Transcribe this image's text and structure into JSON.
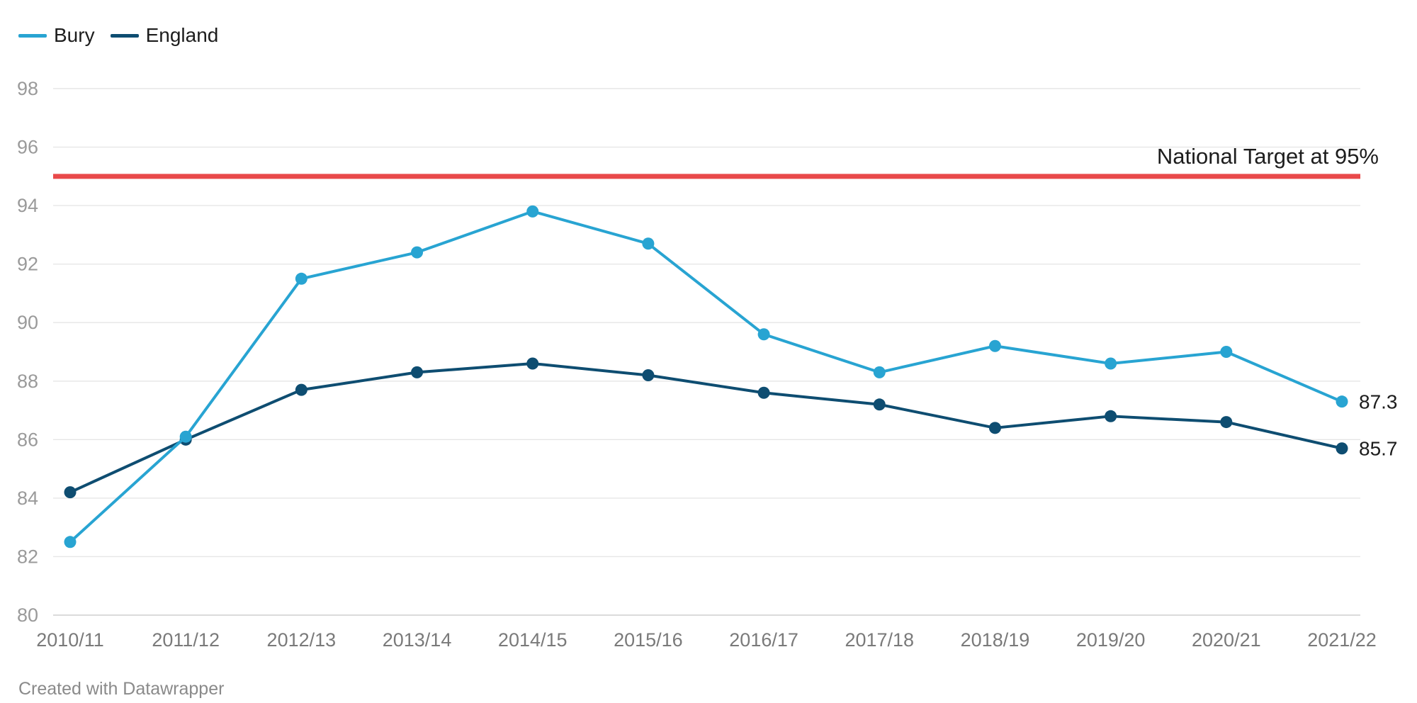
{
  "chart_data": {
    "type": "line",
    "categories": [
      "2010/11",
      "2011/12",
      "2012/13",
      "2013/14",
      "2014/15",
      "2015/16",
      "2016/17",
      "2017/18",
      "2018/19",
      "2019/20",
      "2020/21",
      "2021/22"
    ],
    "series": [
      {
        "name": "Bury",
        "color": "#28a4d2",
        "values": [
          82.5,
          86.1,
          91.5,
          92.4,
          93.8,
          92.7,
          89.6,
          88.3,
          89.2,
          88.6,
          89.0,
          87.3
        ],
        "end_label": "87.3"
      },
      {
        "name": "England",
        "color": "#0e4d71",
        "values": [
          84.2,
          86.0,
          87.7,
          88.3,
          88.6,
          88.2,
          87.6,
          87.2,
          86.4,
          86.8,
          86.6,
          85.7
        ],
        "end_label": "85.7"
      }
    ],
    "yticks": [
      80,
      82,
      84,
      86,
      88,
      90,
      92,
      94,
      96,
      98
    ],
    "ylim": [
      80,
      98
    ],
    "grid": true,
    "legend_position": "top-left",
    "reference_line": {
      "value": 95,
      "label": "National Target at 95%",
      "color": "#e9494a"
    }
  },
  "footer": {
    "credit": "Created with Datawrapper"
  }
}
